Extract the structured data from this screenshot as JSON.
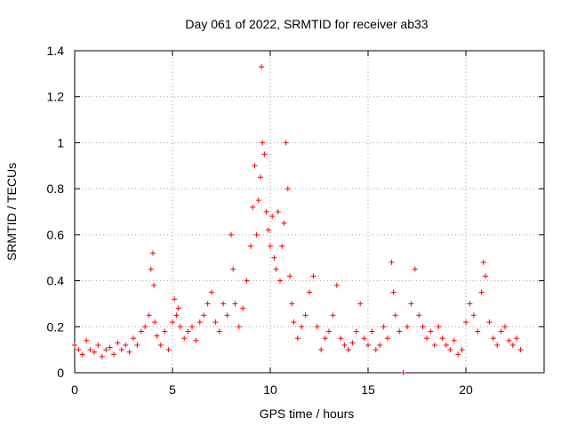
{
  "chart_data": {
    "type": "scatter",
    "title": "Day 061 of 2022, SRMTID for receiver ab33",
    "xlabel": "GPS time / hours",
    "ylabel": "SRMTID / TECUs",
    "xlim": [
      0,
      24
    ],
    "ylim": [
      0,
      1.4
    ],
    "xticks": [
      "0",
      "5",
      "10",
      "15",
      "20"
    ],
    "xtick_values": [
      0,
      5,
      10,
      15,
      20
    ],
    "yticks": [
      "0",
      "0.2",
      "0.4",
      "0.6",
      "0.8",
      "1",
      "1.2",
      "1.4"
    ],
    "ytick_values": [
      0,
      0.2,
      0.4,
      0.6,
      0.8,
      1.0,
      1.2,
      1.4
    ],
    "grid": true,
    "marker": "+",
    "series_color": "#ff0000",
    "series": [
      {
        "name": "SRMTID",
        "x": [
          0.0,
          0.2,
          0.4,
          0.6,
          0.8,
          1.0,
          1.2,
          1.4,
          1.6,
          1.8,
          2.0,
          2.2,
          2.4,
          2.6,
          2.8,
          3.0,
          3.2,
          3.4,
          3.6,
          3.8,
          3.9,
          4.0,
          4.05,
          4.1,
          4.2,
          4.4,
          4.6,
          4.8,
          5.0,
          5.1,
          5.2,
          5.3,
          5.4,
          5.6,
          5.8,
          6.0,
          6.2,
          6.4,
          6.6,
          6.8,
          7.0,
          7.2,
          7.4,
          7.6,
          7.8,
          8.0,
          8.1,
          8.2,
          8.4,
          8.6,
          8.8,
          9.0,
          9.1,
          9.2,
          9.3,
          9.4,
          9.5,
          9.55,
          9.6,
          9.7,
          9.8,
          9.9,
          10.0,
          10.1,
          10.2,
          10.3,
          10.4,
          10.5,
          10.6,
          10.7,
          10.8,
          10.9,
          11.0,
          11.1,
          11.2,
          11.4,
          11.6,
          11.8,
          12.0,
          12.2,
          12.4,
          12.6,
          12.8,
          13.0,
          13.2,
          13.4,
          13.6,
          13.8,
          14.0,
          14.2,
          14.4,
          14.6,
          14.8,
          15.0,
          15.2,
          15.4,
          15.6,
          15.8,
          16.0,
          16.2,
          16.3,
          16.4,
          16.6,
          16.8,
          17.0,
          17.2,
          17.4,
          17.6,
          17.8,
          18.0,
          18.2,
          18.4,
          18.6,
          18.8,
          19.0,
          19.2,
          19.4,
          19.6,
          19.8,
          20.0,
          20.2,
          20.4,
          20.6,
          20.8,
          20.9,
          21.0,
          21.2,
          21.4,
          21.6,
          21.8,
          22.0,
          22.2,
          22.4,
          22.6,
          22.8
        ],
        "values": [
          0.12,
          0.1,
          0.08,
          0.14,
          0.1,
          0.09,
          0.12,
          0.07,
          0.1,
          0.11,
          0.08,
          0.13,
          0.1,
          0.12,
          0.09,
          0.15,
          0.12,
          0.18,
          0.2,
          0.25,
          0.45,
          0.52,
          0.38,
          0.22,
          0.16,
          0.12,
          0.18,
          0.1,
          0.22,
          0.32,
          0.25,
          0.28,
          0.2,
          0.15,
          0.18,
          0.2,
          0.14,
          0.22,
          0.25,
          0.3,
          0.35,
          0.22,
          0.18,
          0.3,
          0.25,
          0.6,
          0.45,
          0.3,
          0.2,
          0.28,
          0.4,
          0.55,
          0.72,
          0.9,
          0.6,
          0.75,
          0.85,
          1.33,
          1.0,
          0.95,
          0.7,
          0.62,
          0.55,
          0.68,
          0.5,
          0.45,
          0.7,
          0.4,
          0.55,
          0.65,
          1.0,
          0.8,
          0.42,
          0.3,
          0.22,
          0.15,
          0.2,
          0.25,
          0.35,
          0.42,
          0.2,
          0.1,
          0.15,
          0.18,
          0.25,
          0.38,
          0.15,
          0.12,
          0.1,
          0.13,
          0.18,
          0.3,
          0.15,
          0.12,
          0.18,
          0.1,
          0.12,
          0.2,
          0.15,
          0.48,
          0.35,
          0.25,
          0.18,
          0.0,
          0.2,
          0.3,
          0.45,
          0.25,
          0.2,
          0.15,
          0.18,
          0.12,
          0.2,
          0.15,
          0.12,
          0.1,
          0.14,
          0.08,
          0.1,
          0.22,
          0.3,
          0.25,
          0.18,
          0.35,
          0.48,
          0.42,
          0.22,
          0.15,
          0.12,
          0.18,
          0.2,
          0.14,
          0.12,
          0.15,
          0.1
        ]
      }
    ]
  }
}
